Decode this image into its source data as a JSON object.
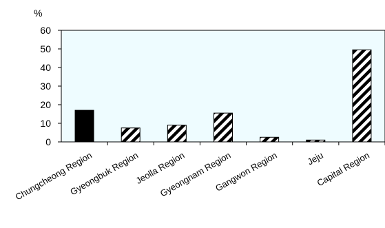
{
  "chart_data": {
    "type": "bar",
    "ylabel": "%",
    "ylim": [
      0,
      60
    ],
    "yticks": [
      "0",
      "10",
      "20",
      "30",
      "40",
      "50",
      "60"
    ],
    "grid": false,
    "categories": [
      "Chungcheong Region",
      "Gyeongbuk Region",
      "Jeolla Region",
      "Gyeongnam Region",
      "Gangwon Region",
      "Jeju",
      "Capital Region"
    ],
    "values": [
      17,
      7.5,
      9,
      15.5,
      2.5,
      1,
      49.5
    ],
    "bar_styles": [
      "solid",
      "hatched",
      "hatched",
      "hatched",
      "hatched",
      "hatched",
      "hatched"
    ]
  },
  "colors": {
    "plot_background": "#eefcff",
    "bar_solid": "#000000",
    "hatch_dark": "#000000",
    "hatch_light": "#ffffff"
  }
}
